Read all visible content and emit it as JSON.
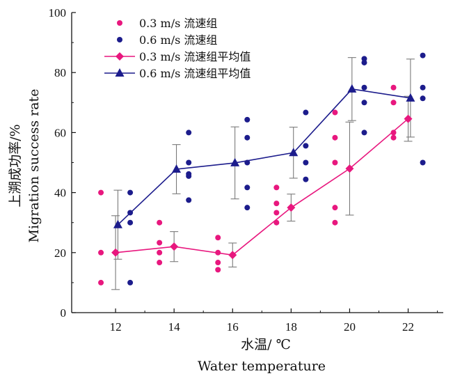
{
  "chart_data": {
    "type": "scatter",
    "xlabel_cn": "水温/ ℃",
    "xlabel_en": "Water temperature",
    "ylabel_cn": "上溯成功率/%",
    "ylabel_en": "Migration success rate",
    "xlim": [
      10.5,
      23.2
    ],
    "ylim": [
      0,
      100
    ],
    "x_ticks": [
      12,
      14,
      16,
      18,
      20,
      22
    ],
    "y_ticks": [
      0,
      20,
      40,
      60,
      80,
      100
    ],
    "grid": false,
    "legend_position": "top-left",
    "colors": {
      "pink": "#e8177e",
      "navy": "#1c1c8c",
      "errorbar": "#7a7a7a",
      "axis": "#111111"
    },
    "scatter_series": [
      {
        "name": "0.3 m/s 流速组",
        "color": "#e8177e",
        "points": [
          {
            "temp": 12,
            "values": [
              40,
              20,
              10
            ]
          },
          {
            "temp": 14,
            "values": [
              30,
              23.3,
              20,
              16.7
            ]
          },
          {
            "temp": 16,
            "values": [
              25,
              20,
              16.7,
              14.3
            ]
          },
          {
            "temp": 18,
            "values": [
              41.7,
              36.4,
              33.3,
              30
            ]
          },
          {
            "temp": 20,
            "values": [
              66.7,
              58.3,
              50,
              35,
              30
            ]
          },
          {
            "temp": 22,
            "values": [
              75,
              70,
              60,
              58.3
            ]
          }
        ]
      },
      {
        "name": "0.6 m/s 流速组",
        "color": "#1c1c8c",
        "points": [
          {
            "temp": 12,
            "values": [
              40,
              33.3,
              30,
              10
            ]
          },
          {
            "temp": 14,
            "values": [
              60,
              50,
              46.2,
              45.5,
              37.5
            ]
          },
          {
            "temp": 16,
            "values": [
              64.3,
              58.3,
              50,
              41.7,
              35
            ]
          },
          {
            "temp": 18,
            "values": [
              66.7,
              55.6,
              50,
              44.4
            ]
          },
          {
            "temp": 20,
            "values": [
              84.6,
              83.3,
              75,
              70,
              60
            ]
          },
          {
            "temp": 22,
            "values": [
              85.7,
              75,
              71.4,
              50
            ]
          }
        ]
      }
    ],
    "mean_series": [
      {
        "name": "0.3 m/s 流速组平均值",
        "color": "#e8177e",
        "marker": "diamond",
        "x": [
          12,
          14,
          16,
          18,
          20,
          22
        ],
        "y": [
          20,
          22,
          19.2,
          35,
          48,
          64.6
        ],
        "err": [
          12.3,
          5,
          4,
          4.5,
          15.5,
          7.5
        ]
      },
      {
        "name": "0.6 m/s 流速组平均值",
        "color": "#1c1c8c",
        "marker": "triangle",
        "x": [
          12,
          14,
          16,
          18,
          20,
          22
        ],
        "y": [
          29.3,
          47.8,
          49.9,
          53.3,
          74.5,
          71.5
        ],
        "err": [
          11.5,
          8.2,
          12,
          8.5,
          10.5,
          13
        ]
      }
    ]
  }
}
